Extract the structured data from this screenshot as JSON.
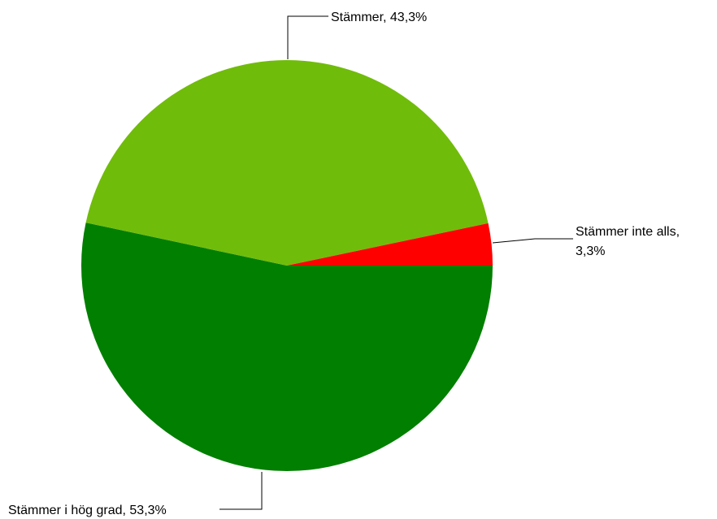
{
  "chart_data": {
    "type": "pie",
    "slices": [
      {
        "label": "Stämmer i hög grad",
        "value": 53.3,
        "value_text": "53,3%",
        "color": "#007f00"
      },
      {
        "label": "Stämmer",
        "value": 43.3,
        "value_text": "43,3%",
        "color": "#70bc0a"
      },
      {
        "label": "Stämmer inte alls",
        "value": 3.3,
        "value_text": "3,3%",
        "color": "#ff0000"
      }
    ],
    "start_angle": "3 o'clock",
    "direction": "clockwise"
  },
  "labels": {
    "hog_grad": "Stämmer i hög grad, 53,3%",
    "stammer": "Stämmer, 43,3%",
    "inte_alls_line1": "Stämmer inte alls,",
    "inte_alls_line2": "3,3%"
  }
}
